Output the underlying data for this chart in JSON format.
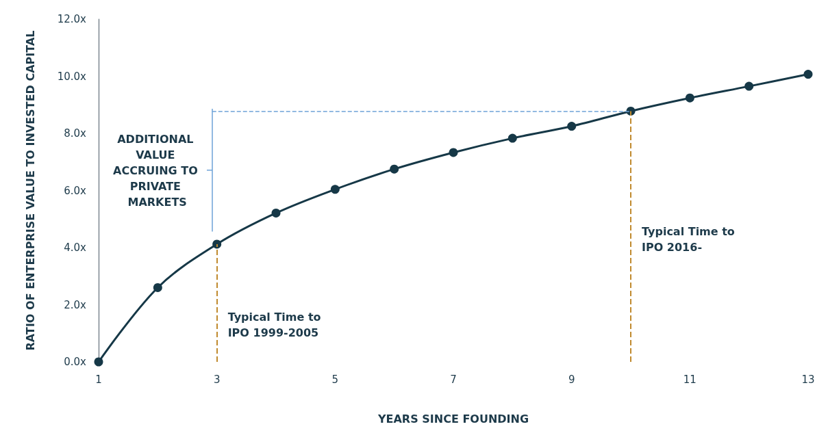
{
  "chart_data": {
    "type": "line",
    "xlabel": "YEARS SINCE FOUNDING",
    "ylabel": "RATIO OF ENTERPRISE VALUE TO INVESTED CAPITAL",
    "x": [
      1,
      2,
      3,
      4,
      5,
      6,
      7,
      8,
      9,
      10,
      11,
      12,
      13
    ],
    "series": [
      {
        "color": "#163847",
        "values": [
          0,
          2.6,
          4.12,
          5.21,
          6.04,
          6.75,
          7.33,
          7.83,
          8.25,
          8.78,
          9.24,
          9.65,
          10.07
        ]
      }
    ],
    "xlim": [
      1,
      13
    ],
    "xticks": [
      1,
      3,
      5,
      7,
      9,
      11,
      13
    ],
    "ylim": [
      0,
      12
    ],
    "yticks": [
      {
        "value": 0,
        "label": "0.0x"
      },
      {
        "value": 2,
        "label": "2.0x"
      },
      {
        "value": 4,
        "label": "4.0x"
      },
      {
        "value": 6,
        "label": "6.0x"
      },
      {
        "value": 8,
        "label": "8.0x"
      },
      {
        "value": 10,
        "label": "10.0x"
      },
      {
        "value": 12,
        "label": "12.0x"
      }
    ],
    "grid": false,
    "marker": "circle",
    "line_style": "solid",
    "ref_lines": [
      {
        "axis": "x",
        "value": 3,
        "label": "Typical Time to IPO 1999-2005",
        "color": "#c08a2e",
        "line_style": "dashed"
      },
      {
        "axis": "x",
        "value": 10,
        "label": "Typical Time to IPO 2016-",
        "color": "#c08a2e",
        "line_style": "dashed"
      },
      {
        "axis": "y",
        "value": 8.78,
        "color": "#6ea3d8",
        "line_style": "dashed"
      }
    ],
    "annotations": [
      "ADDITIONAL VALUE ACCRUING TO PRIVATE MARKETS"
    ]
  }
}
